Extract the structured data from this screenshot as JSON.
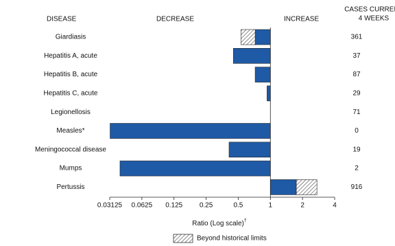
{
  "chart_data": {
    "type": "bar",
    "orientation": "horizontal",
    "headers": {
      "disease": "DISEASE",
      "decrease": "DECREASE",
      "increase": "INCREASE",
      "cases": [
        "CASES CURRENT",
        "4 WEEKS"
      ]
    },
    "categories": [
      "Giardiasis",
      "Hepatitis A, acute",
      "Hepatitis B, acute",
      "Hepatitis C, acute",
      "Legionellosis",
      "Measles*",
      "Meningococcal disease",
      "Mumps",
      "Pertussis"
    ],
    "values": [
      0.53,
      0.45,
      0.72,
      0.93,
      1,
      0.0315,
      0.41,
      0.039,
      2.73
    ],
    "limits": [
      0.72,
      null,
      null,
      null,
      null,
      null,
      null,
      null,
      1.75
    ],
    "cases": [
      361,
      37,
      87,
      29,
      71,
      0,
      19,
      2,
      916
    ],
    "color": "#1f5aa6",
    "xscale": "log",
    "xlim": [
      0.03125,
      4
    ],
    "xticks": [
      0.03125,
      0.0625,
      0.125,
      0.25,
      0.5,
      1,
      2,
      4
    ],
    "xlabel": "Ratio (Log scale)",
    "xlabel_mark": "†",
    "legend_label": "Beyond historical limits"
  }
}
